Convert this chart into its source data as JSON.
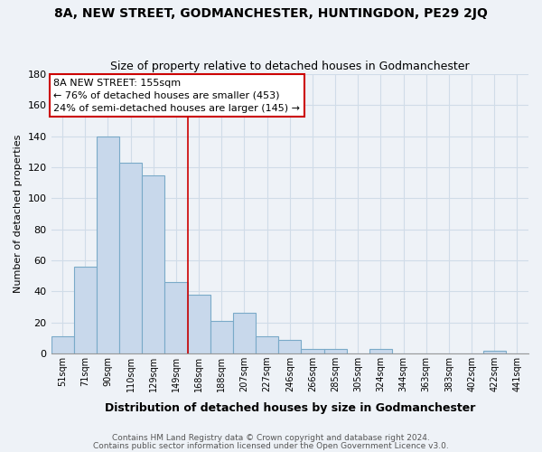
{
  "title": "8A, NEW STREET, GODMANCHESTER, HUNTINGDON, PE29 2JQ",
  "subtitle": "Size of property relative to detached houses in Godmanchester",
  "xlabel": "Distribution of detached houses by size in Godmanchester",
  "ylabel": "Number of detached properties",
  "bar_labels": [
    "51sqm",
    "71sqm",
    "90sqm",
    "110sqm",
    "129sqm",
    "149sqm",
    "168sqm",
    "188sqm",
    "207sqm",
    "227sqm",
    "246sqm",
    "266sqm",
    "285sqm",
    "305sqm",
    "324sqm",
    "344sqm",
    "363sqm",
    "383sqm",
    "402sqm",
    "422sqm",
    "441sqm"
  ],
  "bar_values": [
    11,
    56,
    140,
    123,
    115,
    46,
    38,
    21,
    26,
    11,
    9,
    3,
    3,
    0,
    3,
    0,
    0,
    0,
    0,
    2,
    0
  ],
  "bar_color": "#c8d8eb",
  "bar_edge_color": "#7aaac8",
  "vline_x_index": 5.5,
  "vline_color": "#cc0000",
  "annotation_title": "8A NEW STREET: 155sqm",
  "annotation_line1": "← 76% of detached houses are smaller (453)",
  "annotation_line2": "24% of semi-detached houses are larger (145) →",
  "annotation_box_color": "#ffffff",
  "annotation_box_edge_color": "#cc0000",
  "ylim": [
    0,
    180
  ],
  "yticks": [
    0,
    20,
    40,
    60,
    80,
    100,
    120,
    140,
    160,
    180
  ],
  "footer_line1": "Contains HM Land Registry data © Crown copyright and database right 2024.",
  "footer_line2": "Contains public sector information licensed under the Open Government Licence v3.0.",
  "bg_color": "#eef2f7",
  "grid_color": "#d0dce8"
}
